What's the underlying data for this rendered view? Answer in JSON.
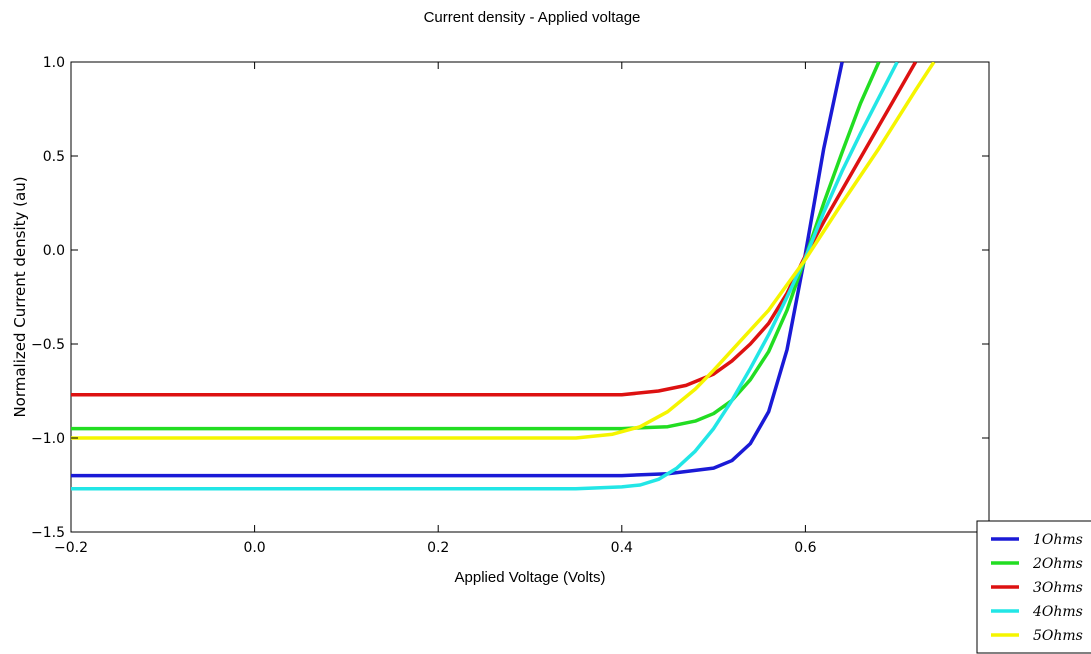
{
  "chart_data": {
    "type": "line",
    "title": "Current density - Applied voltage",
    "xlabel": "Applied Voltage (Volts)",
    "ylabel": "Normalized Current density (au)",
    "xlim": [
      -0.2,
      0.8
    ],
    "ylim": [
      -1.5,
      1.0
    ],
    "xticks": [
      -0.2,
      0.0,
      0.2,
      0.4,
      0.6
    ],
    "xtick_labels": [
      "−0.2",
      "0.0",
      "0.2",
      "0.4",
      "0.6"
    ],
    "yticks": [
      -1.5,
      -1.0,
      -0.5,
      0.0,
      0.5,
      1.0
    ],
    "ytick_labels": [
      "−1.5",
      "−1.0",
      "−0.5",
      "0.0",
      "0.5",
      "1.0"
    ],
    "grid": false,
    "legend_position": "lower-right",
    "series": [
      {
        "name": "1Ohms",
        "color": "#1a1ad6",
        "x": [
          -0.2,
          0.0,
          0.2,
          0.4,
          0.45,
          0.5,
          0.52,
          0.54,
          0.56,
          0.58,
          0.6,
          0.62,
          0.64
        ],
        "y": [
          -1.2,
          -1.2,
          -1.2,
          -1.2,
          -1.19,
          -1.16,
          -1.12,
          -1.03,
          -0.86,
          -0.53,
          -0.02,
          0.54,
          1.0
        ]
      },
      {
        "name": "2Ohms",
        "color": "#22dd22",
        "x": [
          -0.2,
          0.0,
          0.2,
          0.4,
          0.45,
          0.48,
          0.5,
          0.52,
          0.54,
          0.56,
          0.58,
          0.6,
          0.62,
          0.64,
          0.66,
          0.68
        ],
        "y": [
          -0.95,
          -0.95,
          -0.95,
          -0.95,
          -0.94,
          -0.91,
          -0.87,
          -0.8,
          -0.69,
          -0.54,
          -0.32,
          -0.04,
          0.25,
          0.52,
          0.78,
          1.0
        ]
      },
      {
        "name": "3Ohms",
        "color": "#dd1111",
        "x": [
          -0.2,
          0.0,
          0.2,
          0.4,
          0.44,
          0.47,
          0.5,
          0.52,
          0.54,
          0.56,
          0.58,
          0.6,
          0.62,
          0.64,
          0.66,
          0.68,
          0.7,
          0.72
        ],
        "y": [
          -0.77,
          -0.77,
          -0.77,
          -0.77,
          -0.75,
          -0.72,
          -0.66,
          -0.59,
          -0.5,
          -0.39,
          -0.23,
          -0.03,
          0.15,
          0.32,
          0.49,
          0.66,
          0.83,
          1.0
        ]
      },
      {
        "name": "4Ohms",
        "color": "#22e6e6",
        "x": [
          -0.2,
          0.0,
          0.2,
          0.35,
          0.4,
          0.42,
          0.44,
          0.46,
          0.48,
          0.5,
          0.52,
          0.54,
          0.56,
          0.58,
          0.6,
          0.62,
          0.64,
          0.66,
          0.68,
          0.7
        ],
        "y": [
          -1.27,
          -1.27,
          -1.27,
          -1.27,
          -1.26,
          -1.25,
          -1.22,
          -1.16,
          -1.07,
          -0.95,
          -0.8,
          -0.63,
          -0.45,
          -0.25,
          -0.04,
          0.2,
          0.42,
          0.62,
          0.81,
          1.0
        ]
      },
      {
        "name": "5Ohms",
        "color": "#f5f500",
        "x": [
          -0.2,
          0.0,
          0.2,
          0.35,
          0.39,
          0.42,
          0.45,
          0.48,
          0.5,
          0.53,
          0.56,
          0.6,
          0.64,
          0.68,
          0.72,
          0.74
        ],
        "y": [
          -1.0,
          -1.0,
          -1.0,
          -1.0,
          -0.98,
          -0.94,
          -0.86,
          -0.74,
          -0.64,
          -0.48,
          -0.32,
          -0.05,
          0.25,
          0.54,
          0.85,
          1.0
        ]
      }
    ]
  }
}
